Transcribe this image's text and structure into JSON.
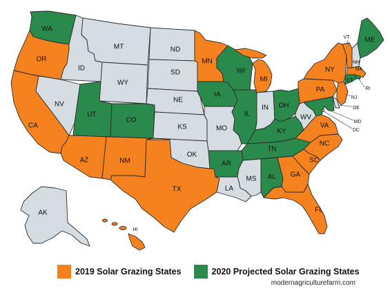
{
  "colors": {
    "solar_2019": "#f5821f",
    "projected_2020": "#2a8a4b",
    "other": "#d5dde2"
  },
  "states": {
    "WA": "2020",
    "OR": "2019",
    "CA": "2019",
    "ID": "none",
    "NV": "none",
    "MT": "none",
    "WY": "none",
    "UT": "2020",
    "AZ": "2019",
    "CO": "2020",
    "NM": "2019",
    "ND": "none",
    "SD": "none",
    "NE": "none",
    "KS": "none",
    "OK": "none",
    "TX": "2019",
    "MN": "2019",
    "IA": "2020",
    "MO": "none",
    "AR": "2020",
    "LA": "none",
    "WI": "2020",
    "IL": "2020",
    "MI": "2019",
    "IN": "none",
    "OH": "2020",
    "KY": "2020",
    "TN": "2020",
    "MS": "none",
    "AL": "2020",
    "GA": "2019",
    "FL": "2019",
    "SC": "2019",
    "NC": "2019",
    "VA": "2019",
    "WV": "none",
    "PA": "2019",
    "NY": "2019",
    "VT": "2019",
    "NH": "none",
    "ME": "2020",
    "MA": "2019",
    "RI": "2020",
    "CT": "2020",
    "NJ": "2019",
    "DE": "none",
    "MD": "2020",
    "DC": "none",
    "AK": "none",
    "HI": "2019"
  },
  "legend": {
    "solar_2019_label": "2019 Solar Grazing States",
    "projected_2020_label": "2020 Projected Solar Grazing States"
  },
  "credit": "modernagriculturefarm.com"
}
